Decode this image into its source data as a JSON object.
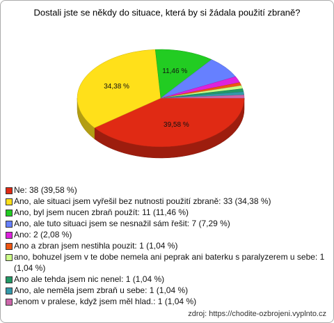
{
  "chart_data": {
    "type": "pie",
    "title": "Dostali jste se někdy do situace, která by si žádala použití zbraně?",
    "categories": [
      "Ne: 38 (39,58 %)",
      "Ano, ale situaci jsem vyřešil bez nutnosti použití zbraně: 33 (34,38 %)",
      "Ano, byl jsem nucen zbraň použít: 11 (11,46 %)",
      "Ano, ale tuto situaci jsem se nesnažil sám řešit: 7 (7,29 %)",
      "Ano: 2 (2,08 %)",
      "Ano a zbran jsem nestihla pouzit: 1 (1,04 %)",
      "ano, bohuzel jsem v te dobe nemela ani peprak ani baterku s paralyzerem u sebe: 1 (1,04 %)",
      "Ano ale tehda jsem nic nenel: 1 (1,04 %)",
      "Ano, ale neměla jsem zbraň u sebe: 1 (1,04 %)",
      "Jenom v pralese, když jsem měl hlad.: 1 (1,04 %)"
    ],
    "values": [
      39.58,
      34.38,
      11.46,
      7.29,
      2.08,
      1.04,
      1.04,
      1.04,
      1.04,
      1.04
    ],
    "value_labels": [
      "39,58 %",
      "34,38 %",
      "11,46 %",
      null,
      null,
      null,
      null,
      null,
      null,
      null
    ],
    "colors": [
      "#e02a14",
      "#ffe01a",
      "#22cc22",
      "#6680ff",
      "#dd22dd",
      "#ee5511",
      "#ccff88",
      "#229966",
      "#3399aa",
      "#cc66aa"
    ],
    "source": "zdroj: https://chodite-ozbrojeni.vyplnto.cz"
  }
}
